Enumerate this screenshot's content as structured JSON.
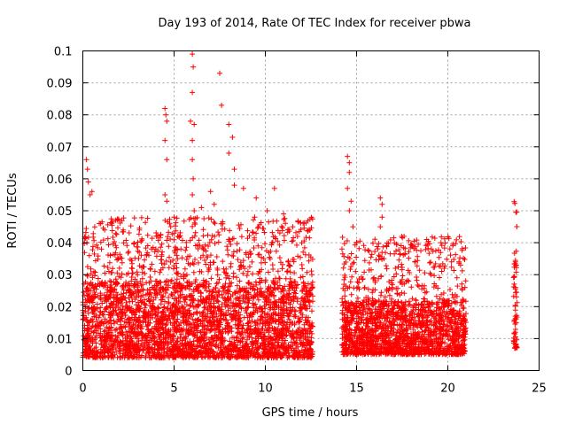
{
  "chart_data": {
    "type": "scatter",
    "title": "Day 193 of 2014, Rate Of TEC Index for receiver pbwa",
    "xlabel": "GPS time / hours",
    "ylabel": "ROTI / TECUs",
    "xlim": [
      0,
      25
    ],
    "ylim": [
      0,
      0.1
    ],
    "x_ticks": [
      "0",
      "5",
      "10",
      "15",
      "20",
      "25"
    ],
    "y_ticks": [
      "0",
      "0.01",
      "0.02",
      "0.03",
      "0.04",
      "0.05",
      "0.06",
      "0.07",
      "0.08",
      "0.09",
      "0.1"
    ],
    "grid": true,
    "marker": "+",
    "color": "#ff0000",
    "density_profile": {
      "segments": [
        {
          "x_start": 0.0,
          "x_end": 12.6,
          "baseline_low": 0.004,
          "baseline_high": 0.028
        },
        {
          "x_start": 14.2,
          "x_end": 21.0,
          "baseline_low": 0.005,
          "baseline_high": 0.022
        },
        {
          "x_start": 23.6,
          "x_end": 23.8,
          "baseline_low": 0.007,
          "baseline_high": 0.034
        }
      ]
    },
    "notable_points": [
      [
        0.2,
        0.066
      ],
      [
        0.25,
        0.063
      ],
      [
        0.3,
        0.059
      ],
      [
        0.4,
        0.055
      ],
      [
        0.5,
        0.056
      ],
      [
        0.9,
        0.046
      ],
      [
        1.2,
        0.044
      ],
      [
        1.5,
        0.036
      ],
      [
        3.1,
        0.044
      ],
      [
        4.0,
        0.038
      ],
      [
        4.5,
        0.082
      ],
      [
        4.55,
        0.08
      ],
      [
        4.6,
        0.078
      ],
      [
        4.5,
        0.072
      ],
      [
        4.6,
        0.066
      ],
      [
        4.5,
        0.055
      ],
      [
        4.6,
        0.053
      ],
      [
        5.0,
        0.048
      ],
      [
        5.2,
        0.042
      ],
      [
        5.9,
        0.078
      ],
      [
        6.0,
        0.099
      ],
      [
        6.05,
        0.095
      ],
      [
        6.0,
        0.087
      ],
      [
        6.1,
        0.077
      ],
      [
        6.0,
        0.072
      ],
      [
        6.0,
        0.066
      ],
      [
        6.05,
        0.06
      ],
      [
        6.0,
        0.055
      ],
      [
        6.1,
        0.05
      ],
      [
        6.5,
        0.051
      ],
      [
        7.0,
        0.056
      ],
      [
        7.2,
        0.052
      ],
      [
        7.5,
        0.093
      ],
      [
        7.6,
        0.083
      ],
      [
        8.0,
        0.077
      ],
      [
        8.2,
        0.073
      ],
      [
        8.0,
        0.068
      ],
      [
        8.3,
        0.063
      ],
      [
        8.3,
        0.058
      ],
      [
        8.8,
        0.057
      ],
      [
        9.5,
        0.054
      ],
      [
        10.1,
        0.05
      ],
      [
        10.5,
        0.057
      ],
      [
        11.0,
        0.049
      ],
      [
        11.5,
        0.045
      ],
      [
        12.4,
        0.044
      ],
      [
        14.5,
        0.067
      ],
      [
        14.6,
        0.065
      ],
      [
        14.6,
        0.062
      ],
      [
        14.5,
        0.057
      ],
      [
        14.7,
        0.053
      ],
      [
        14.6,
        0.05
      ],
      [
        14.8,
        0.045
      ],
      [
        15.0,
        0.04
      ],
      [
        14.2,
        0.038
      ],
      [
        16.3,
        0.054
      ],
      [
        16.4,
        0.052
      ],
      [
        16.4,
        0.048
      ],
      [
        16.3,
        0.045
      ],
      [
        16.5,
        0.035
      ],
      [
        17.6,
        0.042
      ],
      [
        17.5,
        0.027
      ],
      [
        19.8,
        0.032
      ],
      [
        20.2,
        0.034
      ],
      [
        20.7,
        0.033
      ],
      [
        20.5,
        0.029
      ],
      [
        23.7,
        0.034
      ],
      [
        23.75,
        0.033
      ],
      [
        23.7,
        0.026
      ],
      [
        23.7,
        0.017
      ],
      [
        23.75,
        0.015
      ],
      [
        23.7,
        0.012
      ],
      [
        23.7,
        0.007
      ],
      [
        23.75,
        0.0072
      ]
    ]
  }
}
